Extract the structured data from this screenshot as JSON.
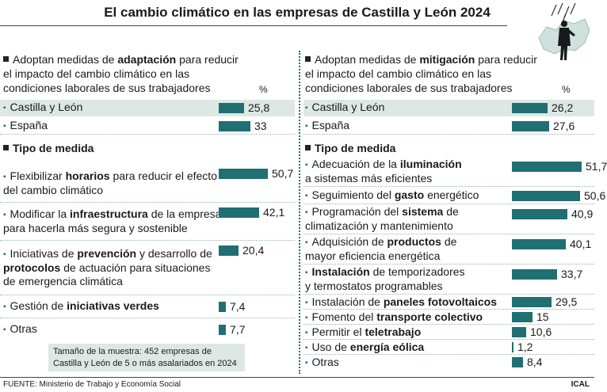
{
  "title": "El cambio climático en las empresas de Castilla y León 2024",
  "colors": {
    "bar": "#1f6f73",
    "highlight": "#dde8e5"
  },
  "unit": "%",
  "section_label": "Tipo de medida",
  "sample_note": "Tamaño de la muestra: 452 empresas de Castilla y León de 5 o más asalariados en 2024",
  "source": "FUENTE: Ministerio de Trabajo y Economía Social",
  "credit": "ICAL",
  "illustration": "person-under-rain-over-map",
  "chart_data": [
    {
      "type": "bar",
      "orientation": "horizontal",
      "question_lines": [
        "Adoptan medidas de adaptación para reducir",
        "el impacto del cambio climático en las",
        "condiciones laborales de sus trabajadores"
      ],
      "question_bold": "adaptación",
      "regions": [
        {
          "label": "Castilla y León",
          "value": 25.8,
          "display": "25,8"
        },
        {
          "label": "España",
          "value": 33,
          "display": "33"
        }
      ],
      "measures": [
        {
          "lines": [
            "Flexibilizar horarios para reducir el efecto",
            "del cambio climático"
          ],
          "bold": [
            "horarios"
          ],
          "value": 50.7,
          "display": "50,7"
        },
        {
          "lines": [
            "Modificar la infraestructura de la empresa",
            "para hacerla más segura y sostenible"
          ],
          "bold": [
            "infraestructura"
          ],
          "value": 42.1,
          "display": "42,1"
        },
        {
          "lines": [
            "Iniciativas de prevención y desarrollo de",
            "protocolos de actuación para situaciones",
            "de emergencia climática"
          ],
          "bold": [
            "prevención",
            "protocolos"
          ],
          "value": 20.4,
          "display": "20,4"
        },
        {
          "lines": [
            "Gestión de iniciativas verdes"
          ],
          "bold": [
            "iniciativas verdes"
          ],
          "value": 7.4,
          "display": "7,4"
        },
        {
          "lines": [
            "Otras"
          ],
          "bold": [],
          "value": 7.7,
          "display": "7,7"
        }
      ]
    },
    {
      "type": "bar",
      "orientation": "horizontal",
      "question_lines": [
        "Adoptan medidas de mitigación para reducir",
        "el impacto del cambio climático en las",
        "condiciones laborales de sus trabajadores"
      ],
      "question_bold": "mitigación",
      "regions": [
        {
          "label": "Castilla y León",
          "value": 26.2,
          "display": "26,2"
        },
        {
          "label": "España",
          "value": 27.6,
          "display": "27,6"
        }
      ],
      "measures": [
        {
          "lines": [
            "Adecuación de la iluminación",
            "a sistemas más eficientes"
          ],
          "bold": [
            "iluminación"
          ],
          "value": 51.7,
          "display": "51,7"
        },
        {
          "lines": [
            "Seguimiento del gasto energético"
          ],
          "bold": [
            "gasto"
          ],
          "value": 50.6,
          "display": "50,6"
        },
        {
          "lines": [
            "Programación del sistema de",
            "climatización y mantenimiento"
          ],
          "bold": [
            "sistema"
          ],
          "value": 40.9,
          "display": "40,9"
        },
        {
          "lines": [
            "Adquisición de productos de",
            "mayor eficiencia energética"
          ],
          "bold": [
            "productos"
          ],
          "value": 40.1,
          "display": "40,1"
        },
        {
          "lines": [
            "Instalación de temporizadores",
            "y termostatos programables"
          ],
          "bold": [
            "Instalación"
          ],
          "value": 33.7,
          "display": "33,7"
        },
        {
          "lines": [
            "Instalación de paneles fotovoltaicos"
          ],
          "bold": [
            "paneles fotovoltaicos"
          ],
          "value": 29.5,
          "display": "29,5"
        },
        {
          "lines": [
            "Fomento del transporte colectivo"
          ],
          "bold": [
            "transporte colectivo"
          ],
          "value": 15,
          "display": "15"
        },
        {
          "lines": [
            "Permitir el teletrabajo"
          ],
          "bold": [
            "teletrabajo"
          ],
          "value": 10.6,
          "display": "10,6"
        },
        {
          "lines": [
            "Uso de energía eólica"
          ],
          "bold": [
            "energía eólica"
          ],
          "value": 1.2,
          "display": "1,2"
        },
        {
          "lines": [
            "Otras"
          ],
          "bold": [],
          "value": 8.4,
          "display": "8,4"
        }
      ]
    }
  ]
}
